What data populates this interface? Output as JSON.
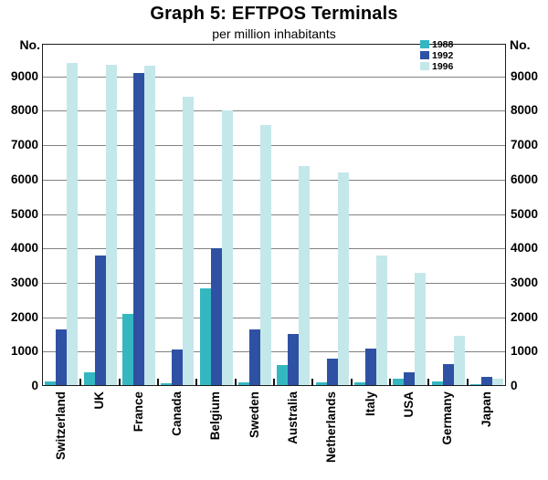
{
  "title": "Graph 5: EFTPOS Terminals",
  "subtitle": "per million inhabitants",
  "y_axis": {
    "unit_label": "No.",
    "ticks": [
      0,
      1000,
      2000,
      3000,
      4000,
      5000,
      6000,
      7000,
      8000,
      9000
    ]
  },
  "legend": {
    "entries": [
      {
        "label": "1988"
      },
      {
        "label": "1992"
      },
      {
        "label": "1996"
      }
    ]
  },
  "colors": {
    "series_1988": "#35b7c1",
    "series_1992": "#2e51a3",
    "series_1996": "#c4e7ea",
    "gridline": "#828282",
    "frame": "#1d1d1d"
  },
  "chart_data": {
    "type": "bar",
    "title": "Graph 5: EFTPOS Terminals",
    "subtitle": "per million inhabitants",
    "xlabel": "",
    "ylabel": "No.",
    "ylim": [
      0,
      9950
    ],
    "grid": true,
    "legend_position": "top-right-inside",
    "categories": [
      "Switzerland",
      "UK",
      "France",
      "Canada",
      "Belgium",
      "Sweden",
      "Australia",
      "Netherlands",
      "Italy",
      "USA",
      "Germany",
      "Japan"
    ],
    "series": [
      {
        "name": "1988",
        "color": "#35b7c1",
        "values": [
          120,
          400,
          2100,
          75,
          2850,
          100,
          600,
          100,
          110,
          200,
          140,
          60
        ]
      },
      {
        "name": "1992",
        "color": "#2e51a3",
        "values": [
          1650,
          3800,
          9100,
          1050,
          4000,
          1650,
          1500,
          800,
          1100,
          400,
          650,
          270
        ]
      },
      {
        "name": "1996",
        "color": "#c4e7ea",
        "values": [
          9400,
          9350,
          9300,
          8400,
          8000,
          7600,
          6400,
          6200,
          3800,
          3300,
          1450,
          200
        ]
      }
    ]
  }
}
